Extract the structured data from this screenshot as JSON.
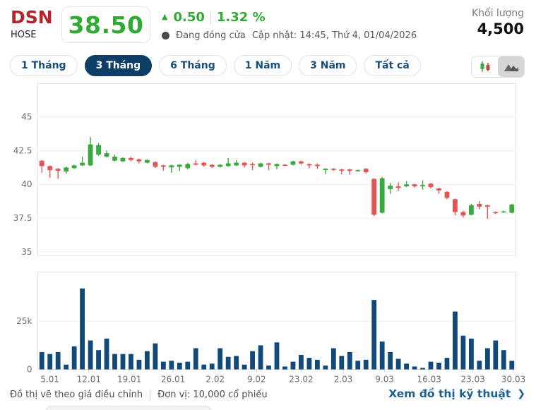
{
  "header": {
    "symbol": "DSN",
    "exchange": "HOSE",
    "price": "38.50",
    "change_arrow": "▲",
    "change": "0.50",
    "change_percent": "1.32 %",
    "market_status": "Đang đóng cửa",
    "updated": "Cập nhật: 14:45, Thứ 4, 01/04/2026",
    "volume_label": "Khối lượng",
    "volume_value": "4,500"
  },
  "tabs": [
    {
      "label": "1 Tháng"
    },
    {
      "label": "3 Tháng"
    },
    {
      "label": "6 Tháng"
    },
    {
      "label": "1 Năm"
    },
    {
      "label": "3 Năm"
    },
    {
      "label": "Tất cả"
    }
  ],
  "active_tab_index": 1,
  "footer": {
    "note_adjusted": "Đồ thị vẽ theo giá điều chỉnh",
    "note_unit": "Đơn vị: 10,000 cổ phiếu",
    "link_label": "Xem đồ thị kỹ thuật",
    "link_chevron": "❯"
  },
  "colors": {
    "up": "#3aa93f",
    "down": "#e25550",
    "volume": "#11497a",
    "accent_navy": "#0d3e68",
    "price_green": "#2faa33",
    "symbol_red": "#b1252c",
    "grid": "#ececec",
    "plot_border": "#e3e3e3"
  },
  "chart_data": {
    "type": "candlestick",
    "title": "DSN 3-month daily price and volume chart",
    "legend_position": "none",
    "grid": true,
    "price_axis": {
      "range": [
        34.74,
        47.45
      ],
      "ticks": [
        45,
        42.5,
        40,
        37.5,
        35
      ],
      "tick_labels": [
        "45",
        "42.5",
        "40",
        "37.5",
        "35"
      ]
    },
    "volume_axis": {
      "range": [
        0,
        50.5
      ],
      "ticks": [
        25,
        0
      ],
      "tick_labels": [
        "25k",
        "0"
      ],
      "unit": "10,000 cổ phiếu"
    },
    "x_labels": [
      {
        "label": "5.01",
        "pos": 1
      },
      {
        "label": "12.01",
        "pos": 5.8
      },
      {
        "label": "19.01",
        "pos": 10.8
      },
      {
        "label": "26.01",
        "pos": 16.2
      },
      {
        "label": "2.02",
        "pos": 21.4
      },
      {
        "label": "9.02",
        "pos": 26.5
      },
      {
        "label": "23.02",
        "pos": 32
      },
      {
        "label": "2.03",
        "pos": 37.2
      },
      {
        "label": "9.03",
        "pos": 42.3
      },
      {
        "label": "16.03",
        "pos": 47.8
      },
      {
        "label": "23.03",
        "pos": 53.2
      },
      {
        "label": "30.03",
        "pos": 58.2
      }
    ],
    "candles_ohlc": [
      [
        41.75,
        41.8,
        40.85,
        41.35
      ],
      [
        41.35,
        41.4,
        40.5,
        41.05
      ],
      [
        41.15,
        41.2,
        40.4,
        41.0
      ],
      [
        40.95,
        41.3,
        40.8,
        41.25
      ],
      [
        41.2,
        41.45,
        41.15,
        41.4
      ],
      [
        41.4,
        42.05,
        41.35,
        41.6
      ],
      [
        41.4,
        43.5,
        41.35,
        42.95
      ],
      [
        42.2,
        43.05,
        42.1,
        42.9
      ],
      [
        42.05,
        42.5,
        42.0,
        42.3
      ],
      [
        41.75,
        42.2,
        41.7,
        42.05
      ],
      [
        41.7,
        42.0,
        41.65,
        41.95
      ],
      [
        41.95,
        42.05,
        41.7,
        41.8
      ],
      [
        41.85,
        41.9,
        41.55,
        41.7
      ],
      [
        41.6,
        41.85,
        41.55,
        41.8
      ],
      [
        41.65,
        41.7,
        41.2,
        41.3
      ],
      [
        41.4,
        41.45,
        41.0,
        41.3
      ],
      [
        41.25,
        41.45,
        40.85,
        41.4
      ],
      [
        41.3,
        41.5,
        41.0,
        41.45
      ],
      [
        41.2,
        41.6,
        41.1,
        41.5
      ],
      [
        41.55,
        41.8,
        41.4,
        41.45
      ],
      [
        41.6,
        41.65,
        41.3,
        41.4
      ],
      [
        41.45,
        41.5,
        41.2,
        41.3
      ],
      [
        41.3,
        41.5,
        41.25,
        41.45
      ],
      [
        41.35,
        41.95,
        41.3,
        41.55
      ],
      [
        41.4,
        41.8,
        41.35,
        41.6
      ],
      [
        41.6,
        41.65,
        41.25,
        41.4
      ],
      [
        41.5,
        41.6,
        41.05,
        41.45
      ],
      [
        41.3,
        41.6,
        41.25,
        41.55
      ],
      [
        41.55,
        41.6,
        41.05,
        41.45
      ],
      [
        41.35,
        41.55,
        41.1,
        41.5
      ],
      [
        41.45,
        41.5,
        41.35,
        41.4
      ],
      [
        41.45,
        41.75,
        41.4,
        41.7
      ],
      [
        41.7,
        41.75,
        41.45,
        41.55
      ],
      [
        41.5,
        41.55,
        41.2,
        41.4
      ],
      [
        41.45,
        41.55,
        41.15,
        41.35
      ],
      [
        41.05,
        41.2,
        40.75,
        41.15
      ],
      [
        41.15,
        41.2,
        41.0,
        41.1
      ],
      [
        41.1,
        41.15,
        40.75,
        41.05
      ],
      [
        41.1,
        41.15,
        40.7,
        41.0
      ],
      [
        41.0,
        41.1,
        40.95,
        41.05
      ],
      [
        41.15,
        41.2,
        40.8,
        40.9
      ],
      [
        40.4,
        40.45,
        37.65,
        37.75
      ],
      [
        37.9,
        40.55,
        37.85,
        40.45
      ],
      [
        39.65,
        40.1,
        39.3,
        39.9
      ],
      [
        39.85,
        40.15,
        39.5,
        39.75
      ],
      [
        39.85,
        40.25,
        39.8,
        40.0
      ],
      [
        40.0,
        40.05,
        39.75,
        39.85
      ],
      [
        39.85,
        40.3,
        39.6,
        39.95
      ],
      [
        40.05,
        40.1,
        39.7,
        39.8
      ],
      [
        39.7,
        39.75,
        39.3,
        39.55
      ],
      [
        39.45,
        39.5,
        38.9,
        39.0
      ],
      [
        38.9,
        38.95,
        37.7,
        37.95
      ],
      [
        37.95,
        38.05,
        37.55,
        37.7
      ],
      [
        37.75,
        38.55,
        37.7,
        38.45
      ],
      [
        38.55,
        38.75,
        38.15,
        38.35
      ],
      [
        38.45,
        38.5,
        37.45,
        38.35
      ],
      [
        37.95,
        38.0,
        37.8,
        37.9
      ],
      [
        37.95,
        38.05,
        37.9,
        38.0
      ],
      [
        37.9,
        38.55,
        37.85,
        38.5
      ]
    ],
    "volumes_10k": [
      9,
      8,
      9,
      2.5,
      12,
      42,
      15,
      10,
      16,
      8,
      8,
      8,
      5,
      9.5,
      13.5,
      4,
      4.5,
      3.5,
      4,
      11,
      2.5,
      3,
      11,
      6.5,
      7,
      2.5,
      9.5,
      12.5,
      2,
      14,
      1.5,
      4,
      7.5,
      6,
      5,
      2,
      11,
      7,
      9,
      4.5,
      5,
      36,
      14.5,
      9,
      5.5,
      3,
      1.5,
      0.8,
      4,
      3.5,
      6,
      30,
      17.5,
      16,
      4.5,
      11,
      15,
      10,
      4.5
    ]
  }
}
